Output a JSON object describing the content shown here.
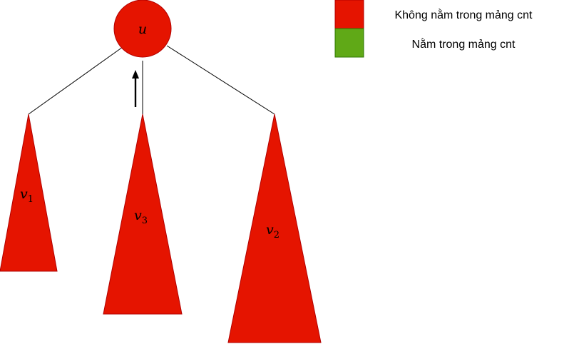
{
  "colors": {
    "not_in_cnt": "#e51400",
    "in_cnt": "#60a917",
    "edge": "#000000"
  },
  "nodes": {
    "root": {
      "var": "u"
    },
    "child_left": {
      "var": "v",
      "sub": "1"
    },
    "child_middle": {
      "var": "v",
      "sub": "3"
    },
    "child_right": {
      "var": "v",
      "sub": "2"
    }
  },
  "legend": [
    {
      "label": "Không nằm trong mảng cnt",
      "color": "#e51400"
    },
    {
      "label": "Nằm trong mảng cnt",
      "color": "#60a917"
    }
  ]
}
